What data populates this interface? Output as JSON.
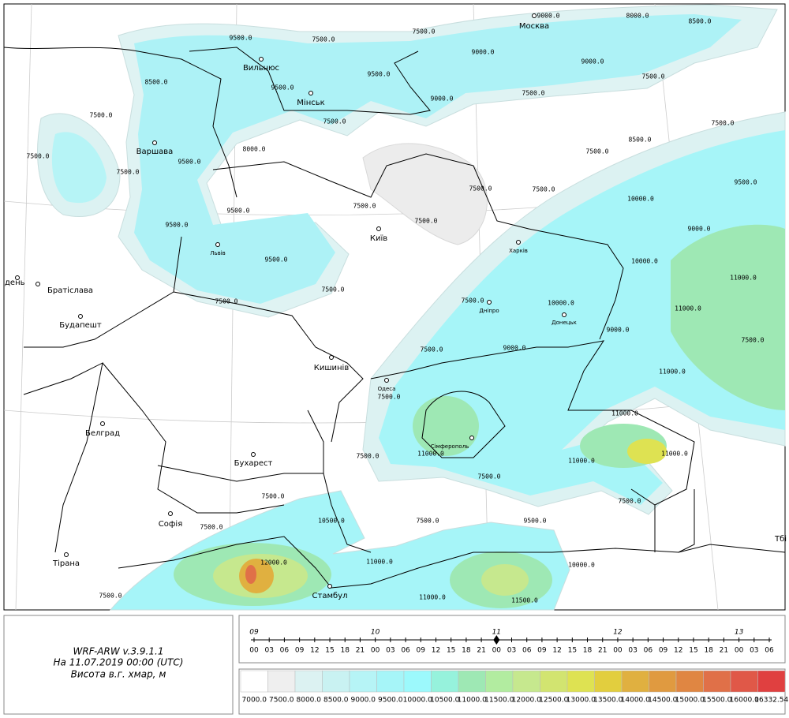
{
  "map": {
    "cities": [
      "Москва",
      "Вильнюс",
      "Мінськ",
      "Варшава",
      "Київ",
      "Львів",
      "Харків",
      "Дніпро",
      "Донецьк",
      "Кишинів",
      "Одеса",
      "Сімферополь",
      "Братіслава",
      "Будапешт",
      "Белград",
      "Бухарест",
      "Софія",
      "Тірана",
      "Стамбул",
      "день",
      "Тбі"
    ],
    "contour_labels": [
      "9500.0",
      "7500.0",
      "7500.0",
      "9000.0",
      "8000.0",
      "8500.0",
      "9500.0",
      "9500.0",
      "9000.0",
      "9000.0",
      "7500.0",
      "8500.0",
      "7500.0",
      "7500.0",
      "9000.0",
      "7500.0",
      "7500.0",
      "7500.0",
      "9500.0",
      "8000.0",
      "7500.0",
      "8500.0",
      "7500.0",
      "9500.0",
      "7500.0",
      "7500.0",
      "10000.0",
      "9500.0",
      "7500.0",
      "7500.0",
      "9500.0",
      "9000.0",
      "9500.0",
      "10000.0",
      "11000.0",
      "7500.0",
      "7500.0",
      "10000.0",
      "11000.0",
      "7500.0",
      "9000.0",
      "7500.0",
      "7500.0",
      "9000.0",
      "11000.0",
      "7500.0",
      "11000.0",
      "11000.0",
      "7500.0",
      "11000.0",
      "11000.0",
      "7500.0",
      "7500.0",
      "7500.0",
      "10500.0",
      "7500.0",
      "9500.0",
      "7500.0",
      "12000.0",
      "11000.0",
      "10000.0",
      "7500.0",
      "11000.0",
      "11500.0"
    ]
  },
  "info": {
    "model": "WRF-ARW v.3.9.1.1",
    "date": "На 11.07.2019 00:00 (UTC)",
    "field": "Висота в.г. хмар, м"
  },
  "timeline": {
    "days": [
      "09",
      "10",
      "11",
      "12",
      "13"
    ],
    "hours": [
      "00",
      "03",
      "06",
      "09",
      "12",
      "15",
      "18",
      "21",
      "00",
      "03",
      "06",
      "09",
      "12",
      "15",
      "18",
      "21",
      "00",
      "03",
      "06",
      "09",
      "12",
      "15",
      "18",
      "21",
      "00",
      "03",
      "06",
      "09",
      "12",
      "15",
      "18",
      "21",
      "00",
      "03",
      "06"
    ],
    "current": 16
  },
  "colorbar": {
    "labels": [
      "7000.0",
      "7500.0",
      "8000.0",
      "8500.0",
      "9000.0",
      "9500.0",
      "10000.0",
      "10500.0",
      "11000.0",
      "11500.0",
      "12000.0",
      "12500.0",
      "13000.0",
      "13500.0",
      "14000.0",
      "14500.0",
      "15000.0",
      "15500.0",
      "16000.0",
      "16332.54"
    ],
    "colors": [
      "#ffffff",
      "#efefef",
      "#dcf2f2",
      "#c9f2f2",
      "#b6f4f6",
      "#a6f5f8",
      "#9cf9fc",
      "#96f2dc",
      "#9ee8b4",
      "#b2eca0",
      "#c6e88e",
      "#d2e470",
      "#dee252",
      "#e2ce3e",
      "#e0b040",
      "#e09a40",
      "#e08642",
      "#e07048",
      "#e05848",
      "#e04040"
    ]
  }
}
